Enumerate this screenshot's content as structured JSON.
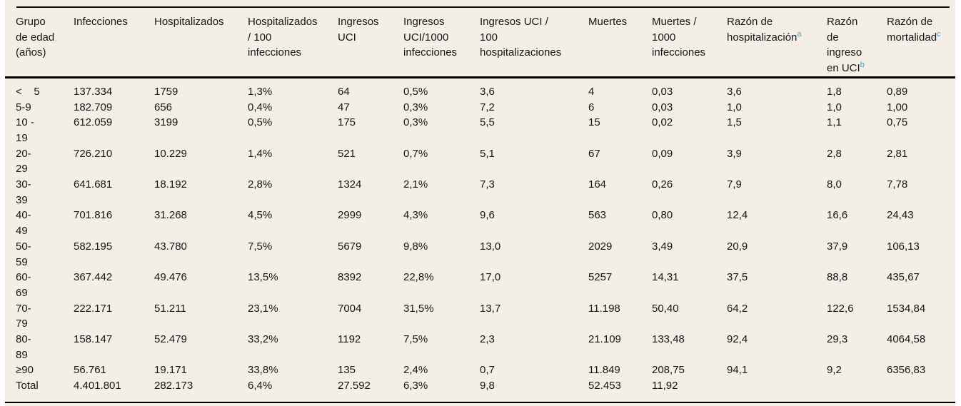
{
  "colors": {
    "panel_background": "#f3efe6",
    "text": "#161616",
    "rule": "#000000",
    "footnote_marker": "#3aa0d8"
  },
  "chart_data": {
    "type": "table",
    "title": "",
    "columns": [
      {
        "label": "Grupo\nde edad\n(años)"
      },
      {
        "label": "Infecciones"
      },
      {
        "label": "Hospitalizados"
      },
      {
        "label": "Hospitalizados\n/ 100\ninfecciones"
      },
      {
        "label": "Ingresos\nUCI"
      },
      {
        "label": "Ingresos\nUCI/1000\ninfecciones"
      },
      {
        "label": "Ingresos UCI /\n100\nhospitalizaciones"
      },
      {
        "label": "Muertes"
      },
      {
        "label": "Muertes /\n1000\ninfecciones"
      },
      {
        "label": "Razón de\nhospitalización",
        "sup": "a"
      },
      {
        "label": "Razón\nde\ningreso\nen UCI",
        "sup": "b"
      },
      {
        "label": "Razón de\nmortalidad",
        "sup": "c"
      }
    ],
    "rows": [
      {
        "cells": [
          "<    5",
          "137.334",
          "1759",
          "1,3%",
          "64",
          "0,5%",
          "3,6",
          "4",
          "0,03",
          "3,6",
          "1,8",
          "0,89"
        ]
      },
      {
        "cells": [
          "5-9",
          "182.709",
          "656",
          "0,4%",
          "47",
          "0,3%",
          "7,2",
          "6",
          "0,03",
          "1,0",
          "1,0",
          "1,00"
        ]
      },
      {
        "cells": [
          "10 -\n19",
          "612.059",
          "3199",
          "0,5%",
          "175",
          "0,3%",
          "5,5",
          "15",
          "0,02",
          "1,5",
          "1,1",
          "0,75"
        ]
      },
      {
        "cells": [
          "20-\n29",
          "726.210",
          "10.229",
          "1,4%",
          "521",
          "0,7%",
          "5,1",
          "67",
          "0,09",
          "3,9",
          "2,8",
          "2,81"
        ]
      },
      {
        "cells": [
          "30-\n39",
          "641.681",
          "18.192",
          "2,8%",
          "1324",
          "2,1%",
          "7,3",
          "164",
          "0,26",
          "7,9",
          "8,0",
          "7,78"
        ]
      },
      {
        "cells": [
          "40-\n49",
          "701.816",
          "31.268",
          "4,5%",
          "2999",
          "4,3%",
          "9,6",
          "563",
          "0,80",
          "12,4",
          "16,6",
          "24,43"
        ]
      },
      {
        "cells": [
          "50-\n59",
          "582.195",
          "43.780",
          "7,5%",
          "5679",
          "9,8%",
          "13,0",
          "2029",
          "3,49",
          "20,9",
          "37,9",
          "106,13"
        ]
      },
      {
        "cells": [
          "60-\n69",
          "367.442",
          "49.476",
          "13,5%",
          "8392",
          "22,8%",
          "17,0",
          "5257",
          "14,31",
          "37,5",
          "88,8",
          "435,67"
        ]
      },
      {
        "cells": [
          "70-\n79",
          "222.171",
          "51.211",
          "23,1%",
          "7004",
          "31,5%",
          "13,7",
          "11.198",
          "50,40",
          "64,2",
          "122,6",
          "1534,84"
        ]
      },
      {
        "cells": [
          "80-\n89",
          "158.147",
          "52.479",
          "33,2%",
          "1192",
          "7,5%",
          "2,3",
          "21.109",
          "133,48",
          "92,4",
          "29,3",
          "4064,58"
        ]
      },
      {
        "cells": [
          "≥90",
          "56.761",
          "19.171",
          "33,8%",
          "135",
          "2,4%",
          "0,7",
          "11.849",
          "208,75",
          "94,1",
          "9,2",
          "6356,83"
        ]
      },
      {
        "cells": [
          "Total",
          "4.401.801",
          "282.173",
          "6,4%",
          "27.592",
          "6,3%",
          "9,8",
          "52.453",
          "11,92",
          "",
          "",
          ""
        ]
      }
    ]
  }
}
